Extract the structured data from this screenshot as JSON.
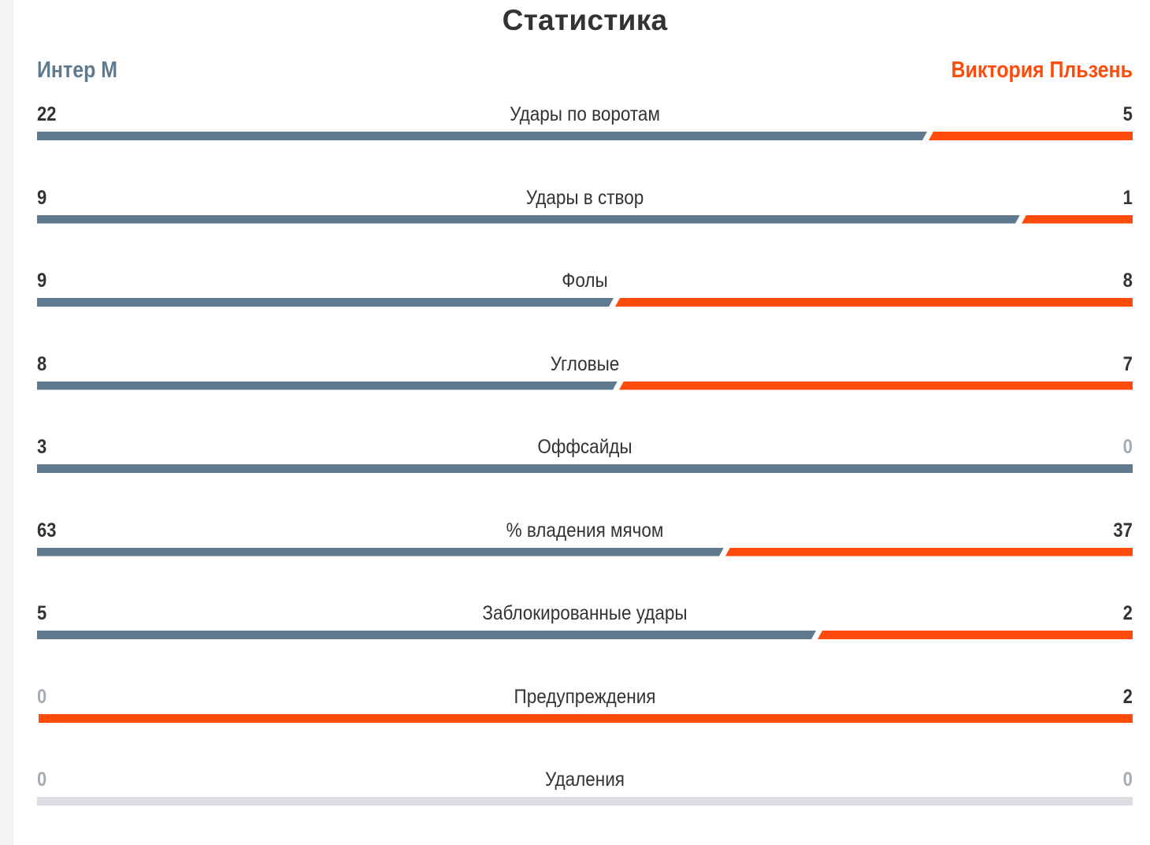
{
  "title": "Статистика",
  "teams": {
    "home": {
      "name": "Интер М",
      "color": "#5f7a8e"
    },
    "away": {
      "name": "Виктория Пльзень",
      "color": "#ff4b0c"
    }
  },
  "colors": {
    "text": "#333333",
    "zero_value": "#a5acb4",
    "empty_bar": "#dcdee1"
  },
  "stats": [
    {
      "label": "Удары по воротам",
      "home": "22",
      "away": "5",
      "home_share": 0.815
    },
    {
      "label": "Удары в створ",
      "home": "9",
      "away": "1",
      "home_share": 0.9
    },
    {
      "label": "Фолы",
      "home": "9",
      "away": "8",
      "home_share": 0.529
    },
    {
      "label": "Угловые",
      "home": "8",
      "away": "7",
      "home_share": 0.533
    },
    {
      "label": "Оффсайды",
      "home": "3",
      "away": "0",
      "home_share": 1.0
    },
    {
      "label": "% владения мячом",
      "home": "63",
      "away": "37",
      "home_share": 0.63
    },
    {
      "label": "Заблокированные удары",
      "home": "5",
      "away": "2",
      "home_share": 0.714
    },
    {
      "label": "Предупреждения",
      "home": "0",
      "away": "2",
      "home_share": 0.0
    },
    {
      "label": "Удаления",
      "home": "0",
      "away": "0",
      "home_share": null
    }
  ]
}
